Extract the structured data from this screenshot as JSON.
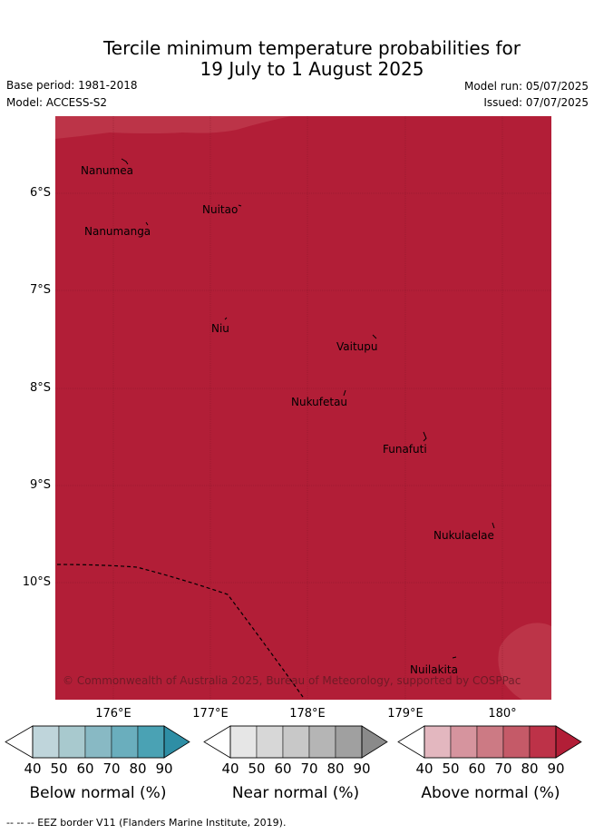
{
  "header": {
    "title_line1": "Tercile minimum temperature probabilities for",
    "title_line2": "19 July to 1 August 2025",
    "base_period": "Base period: 1981-2018",
    "model": "Model: ACCESS-S2",
    "model_run": "Model run: 05/07/2025",
    "issued": "Issued: 07/07/2025"
  },
  "map": {
    "background_color": "#b21e37",
    "lighter_color": "#bc3448",
    "copyright": "© Commonwealth of Australia 2025, Bureau of Meteorology, supported by COSPPac",
    "lat_labels": [
      "6°S",
      "7°S",
      "8°S",
      "9°S",
      "10°S"
    ],
    "lon_labels": [
      "176°E",
      "177°E",
      "178°E",
      "179°E",
      "180°"
    ],
    "places": [
      "Nanumea",
      "Nuitao",
      "Nanumanga",
      "Niu",
      "Vaitupu",
      "Nukufetau",
      "Funafuti",
      "Nukulaelae",
      "Nuilakita"
    ]
  },
  "legend": {
    "ticks": [
      "40",
      "50",
      "60",
      "70",
      "80",
      "90"
    ],
    "below": {
      "label": "Below normal (%)",
      "colors": [
        "#bfd5db",
        "#a8c9ce",
        "#88b9c4",
        "#6aaebd",
        "#4aa2b4",
        "#2e8ea5"
      ]
    },
    "near": {
      "label": "Near normal (%)",
      "colors": [
        "#e6e6e6",
        "#d7d7d7",
        "#c8c8c8",
        "#b5b5b5",
        "#a0a0a0",
        "#8a8a8a"
      ]
    },
    "above": {
      "label": "Above normal (%)",
      "colors": [
        "#e3b7bf",
        "#d6949e",
        "#cc7a84",
        "#c55a68",
        "#bd3248",
        "#b21e37"
      ]
    }
  },
  "footnote": "--  --  -- EEZ border V11 (Flanders Marine Institute, 2019)."
}
